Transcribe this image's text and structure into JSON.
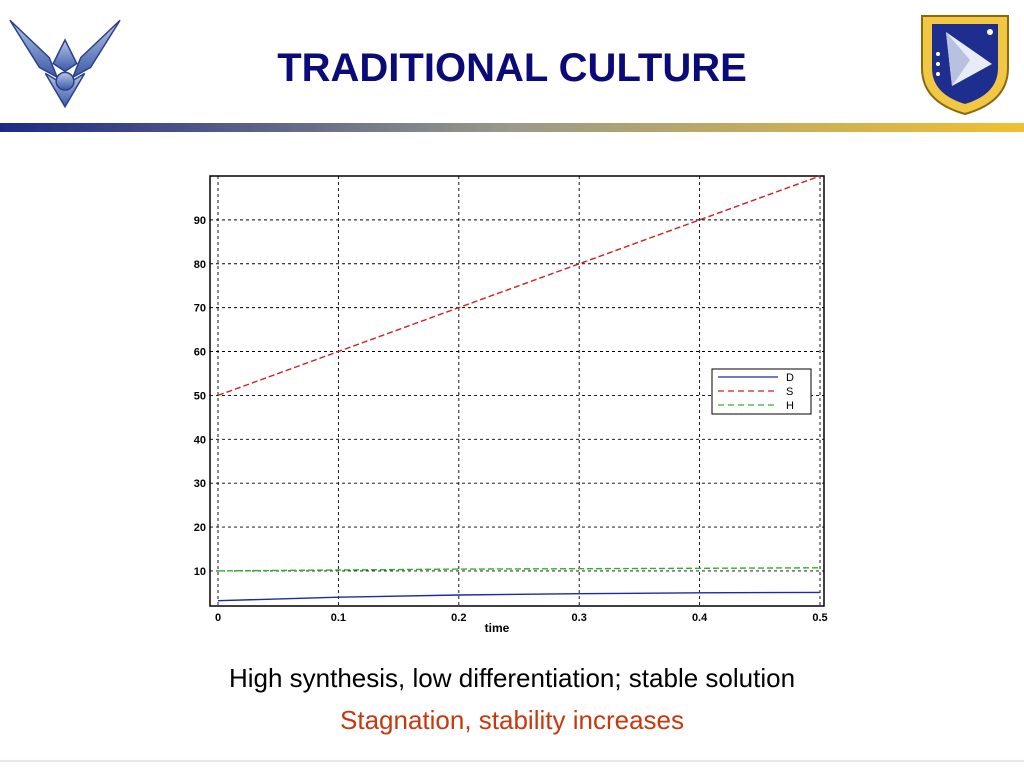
{
  "slide": {
    "title": "TRADITIONAL CULTURE",
    "caption_primary": "High synthesis, low differentiation; stable solution",
    "caption_secondary": "Stagnation, stability increases"
  },
  "colors": {
    "title": "#0a0a78",
    "rule_dark": "#1c2a86",
    "rule_light": "#f0c030",
    "caption_accent": "#c8380e",
    "series_D": "#1a2aa8",
    "series_S": "#cc2222",
    "series_H": "#2ab32a"
  },
  "logos": {
    "left": "air-force-wings-logo",
    "right": "air-force-research-laboratory-shield-logo"
  },
  "chart_data": {
    "type": "line",
    "title": "",
    "xlabel": "time",
    "ylabel": "",
    "xlim": [
      0,
      0.5
    ],
    "ylim": [
      2,
      100
    ],
    "xticks": [
      "0",
      "0.1",
      "0.2",
      "0.3",
      "0.4",
      "0.5"
    ],
    "yticks": [
      "10",
      "20",
      "30",
      "40",
      "50",
      "60",
      "70",
      "80",
      "90"
    ],
    "grid": true,
    "legend_position": "right-middle",
    "series": [
      {
        "name": "D",
        "style": "solid",
        "x": [
          0,
          0.1,
          0.2,
          0.3,
          0.4,
          0.5
        ],
        "values": [
          3.2,
          4.0,
          4.5,
          4.8,
          5.0,
          5.1
        ]
      },
      {
        "name": "S",
        "style": "dashed",
        "x": [
          0,
          0.1,
          0.2,
          0.3,
          0.4,
          0.5
        ],
        "values": [
          50,
          60,
          70,
          80,
          90,
          100
        ]
      },
      {
        "name": "H",
        "style": "dashed",
        "x": [
          0,
          0.1,
          0.2,
          0.3,
          0.4,
          0.5
        ],
        "values": [
          10.0,
          10.2,
          10.4,
          10.5,
          10.6,
          10.7
        ]
      }
    ]
  }
}
